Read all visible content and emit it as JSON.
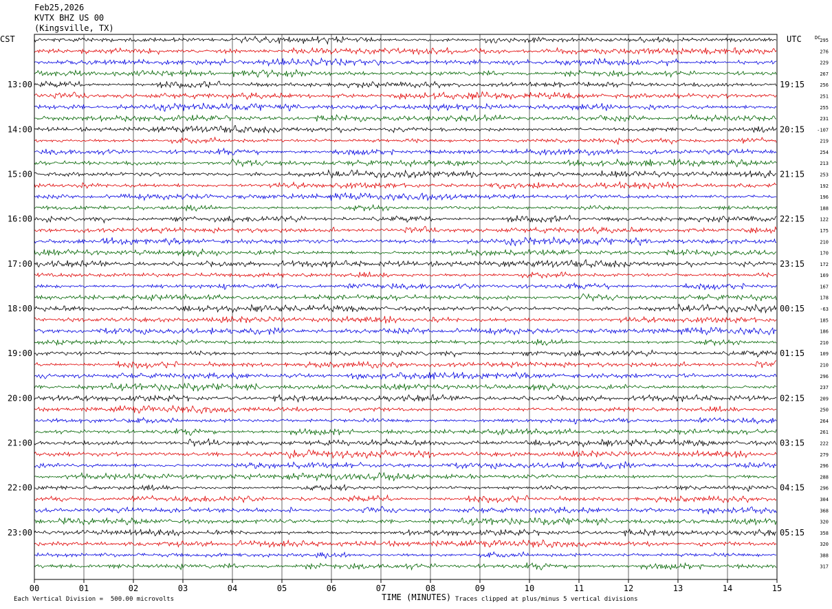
{
  "header": {
    "date": "Feb25,2026",
    "station": "KVTX BHZ US 00",
    "location": "(Kingsville, TX)"
  },
  "left_zone_label": "CST",
  "right_zone_label": "UTC",
  "dc_label": "DC",
  "footer": {
    "scale_note": "Each Vertical Division =  500.00 microvolts",
    "x_axis_title": "TIME (MINUTES)",
    "clip_note": "Traces clipped at plus/minus 5 vertical divisions"
  },
  "trace_colors": [
    "#000000",
    "#e00000",
    "#0000e0",
    "#006400"
  ],
  "chart_data": {
    "type": "line",
    "title": "KVTX BHZ US 00 (Kingsville, TX)",
    "xlabel": "TIME (MINUTES)",
    "x_ticks": [
      "00",
      "01",
      "02",
      "03",
      "04",
      "05",
      "06",
      "07",
      "08",
      "09",
      "10",
      "11",
      "12",
      "13",
      "14",
      "15"
    ],
    "xlim": [
      0,
      15
    ],
    "left_hour_labels": [
      "13:00",
      "14:00",
      "15:00",
      "16:00",
      "17:00",
      "18:00",
      "19:00",
      "20:00",
      "21:00",
      "22:00",
      "23:00"
    ],
    "right_hour_labels": [
      "19:15",
      "20:15",
      "21:15",
      "22:15",
      "23:15",
      "00:15",
      "01:15",
      "02:15",
      "03:15",
      "04:15",
      "05:15"
    ],
    "rows_per_hour": 4,
    "trace_count": 48,
    "dc_offsets": [
      "295",
      "276",
      "229",
      "267",
      "256",
      "251",
      "255",
      "231",
      "-107",
      "219",
      "254",
      "213",
      "253",
      "192",
      "196",
      "188",
      "122",
      "175",
      "210",
      "170",
      "172",
      "169",
      "167",
      "178",
      "-63",
      "185",
      "186",
      "210",
      "109",
      "210",
      "296",
      "237",
      "209",
      "250",
      "264",
      "261",
      "222",
      "279",
      "296",
      "288",
      "296",
      "304",
      "368",
      "320",
      "358",
      "320",
      "388",
      "317"
    ],
    "grid": true
  }
}
